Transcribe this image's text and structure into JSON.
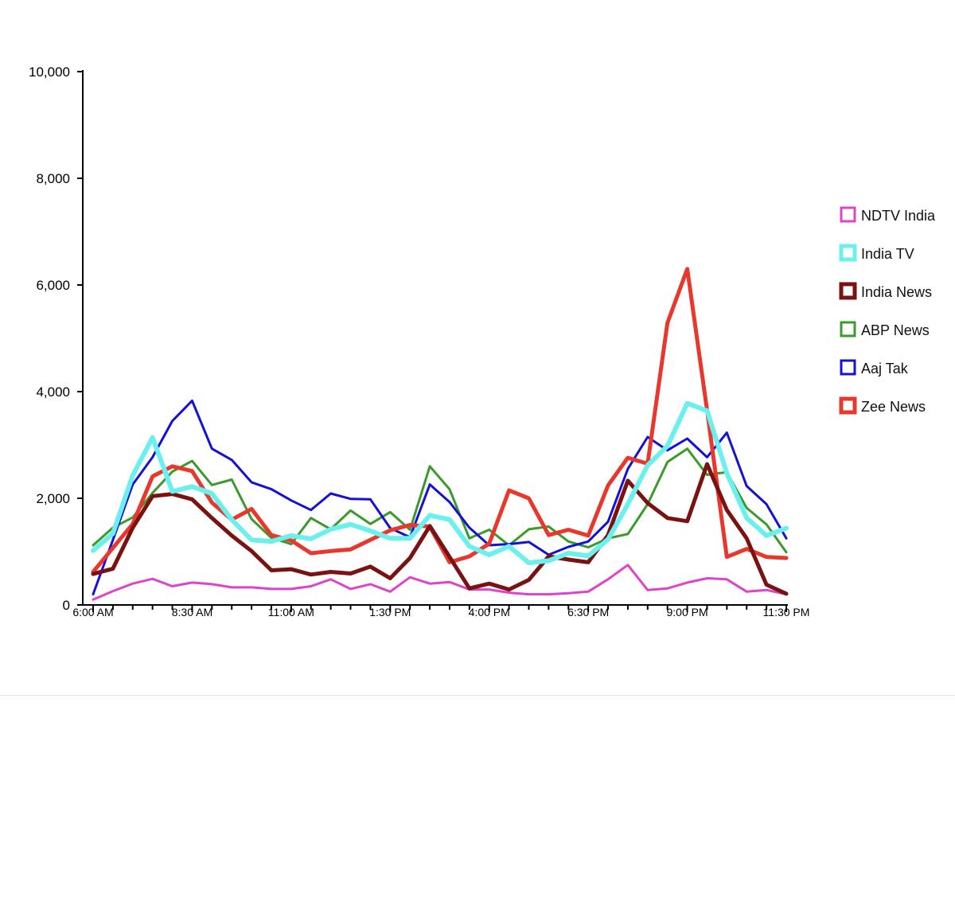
{
  "chart_data": {
    "type": "line",
    "title": "",
    "xlabel": "",
    "ylabel": "",
    "ylim": [
      0,
      10000
    ],
    "yticks": [
      0,
      2000,
      4000,
      6000,
      8000,
      10000
    ],
    "ytick_labels": [
      "0",
      "2,000",
      "4,000",
      "6,000",
      "8,000",
      "10,000"
    ],
    "x": [
      "6:00 AM",
      "6:30 AM",
      "7:00 AM",
      "7:30 AM",
      "8:00 AM",
      "8:30 AM",
      "9:00 AM",
      "9:30 AM",
      "10:00 AM",
      "10:30 AM",
      "11:00 AM",
      "11:30 AM",
      "12:00 PM",
      "12:30 PM",
      "1:00 PM",
      "1:30 PM",
      "2:00 PM",
      "2:30 PM",
      "3:00 PM",
      "3:30 PM",
      "4:00 PM",
      "4:30 PM",
      "5:00 PM",
      "5:30 PM",
      "6:00 PM",
      "6:30 PM",
      "7:00 PM",
      "7:30 PM",
      "8:00 PM",
      "8:30 PM",
      "9:00 PM",
      "9:30 PM",
      "10:00 PM",
      "10:30 PM",
      "11:00 PM",
      "11:30 PM"
    ],
    "xtick_labels": [
      {
        "index": 0,
        "text": "6:00 AM"
      },
      {
        "index": 5,
        "text": "8:30 AM"
      },
      {
        "index": 10,
        "text": "11:00 AM"
      },
      {
        "index": 15,
        "text": "1:30 PM"
      },
      {
        "index": 20,
        "text": "4:00 PM"
      },
      {
        "index": 25,
        "text": "6:30 PM"
      },
      {
        "index": 30,
        "text": "9:00 PM"
      },
      {
        "index": 35,
        "text": "11:30 PM"
      }
    ],
    "legend_position": "right",
    "grid": false,
    "series": [
      {
        "name": "NDTV India",
        "color": "#dd44cc",
        "width": 3,
        "values": [
          100,
          260,
          400,
          490,
          350,
          420,
          390,
          330,
          330,
          300,
          300,
          350,
          480,
          300,
          390,
          250,
          520,
          400,
          430,
          290,
          290,
          230,
          200,
          200,
          220,
          250,
          480,
          750,
          280,
          310,
          420,
          500,
          480,
          250,
          280,
          200
        ]
      },
      {
        "name": "Zee News",
        "color": "#e8382e",
        "width": 5,
        "values": [
          620,
          1070,
          1520,
          2410,
          2600,
          2510,
          1920,
          1600,
          1800,
          1310,
          1210,
          970,
          1010,
          1040,
          1220,
          1400,
          1500,
          1470,
          800,
          910,
          1150,
          2150,
          2000,
          1310,
          1410,
          1300,
          2240,
          2760,
          2650,
          5290,
          6300,
          3650,
          900,
          1050,
          900,
          880
        ]
      },
      {
        "name": "ABP News",
        "color": "#3a9b2a",
        "width": 3,
        "values": [
          1120,
          1450,
          1640,
          2100,
          2500,
          2700,
          2250,
          2350,
          1610,
          1260,
          1140,
          1630,
          1420,
          1770,
          1520,
          1740,
          1410,
          2600,
          2170,
          1250,
          1410,
          1120,
          1420,
          1470,
          1190,
          1080,
          1250,
          1330,
          1890,
          2680,
          2930,
          2440,
          2490,
          1820,
          1510,
          990
        ]
      },
      {
        "name": "India News",
        "color": "#7a1212",
        "width": 5,
        "values": [
          580,
          680,
          1450,
          2040,
          2080,
          1980,
          1630,
          1300,
          1010,
          650,
          670,
          570,
          620,
          590,
          720,
          500,
          880,
          1480,
          900,
          310,
          400,
          290,
          470,
          910,
          850,
          800,
          1310,
          2330,
          1910,
          1630,
          1570,
          2640,
          1780,
          1250,
          380,
          210
        ]
      },
      {
        "name": "Aaj Tak",
        "color": "#1510d8",
        "width": 3,
        "values": [
          200,
          1220,
          2260,
          2770,
          3450,
          3830,
          2930,
          2720,
          2300,
          2170,
          1960,
          1780,
          2090,
          1990,
          1980,
          1440,
          1270,
          2260,
          1930,
          1450,
          1120,
          1140,
          1180,
          940,
          1090,
          1190,
          1560,
          2550,
          3150,
          2900,
          3120,
          2770,
          3230,
          2230,
          1890,
          1250
        ]
      },
      {
        "name": "India TV",
        "color": "#6cf0ee",
        "width": 6,
        "values": [
          1020,
          1340,
          2430,
          3140,
          2130,
          2220,
          2090,
          1600,
          1220,
          1190,
          1300,
          1240,
          1420,
          1510,
          1390,
          1250,
          1250,
          1680,
          1600,
          1100,
          940,
          1100,
          790,
          830,
          970,
          920,
          1230,
          1890,
          2620,
          2980,
          3780,
          3640,
          2470,
          1630,
          1300,
          1440
        ]
      }
    ]
  }
}
